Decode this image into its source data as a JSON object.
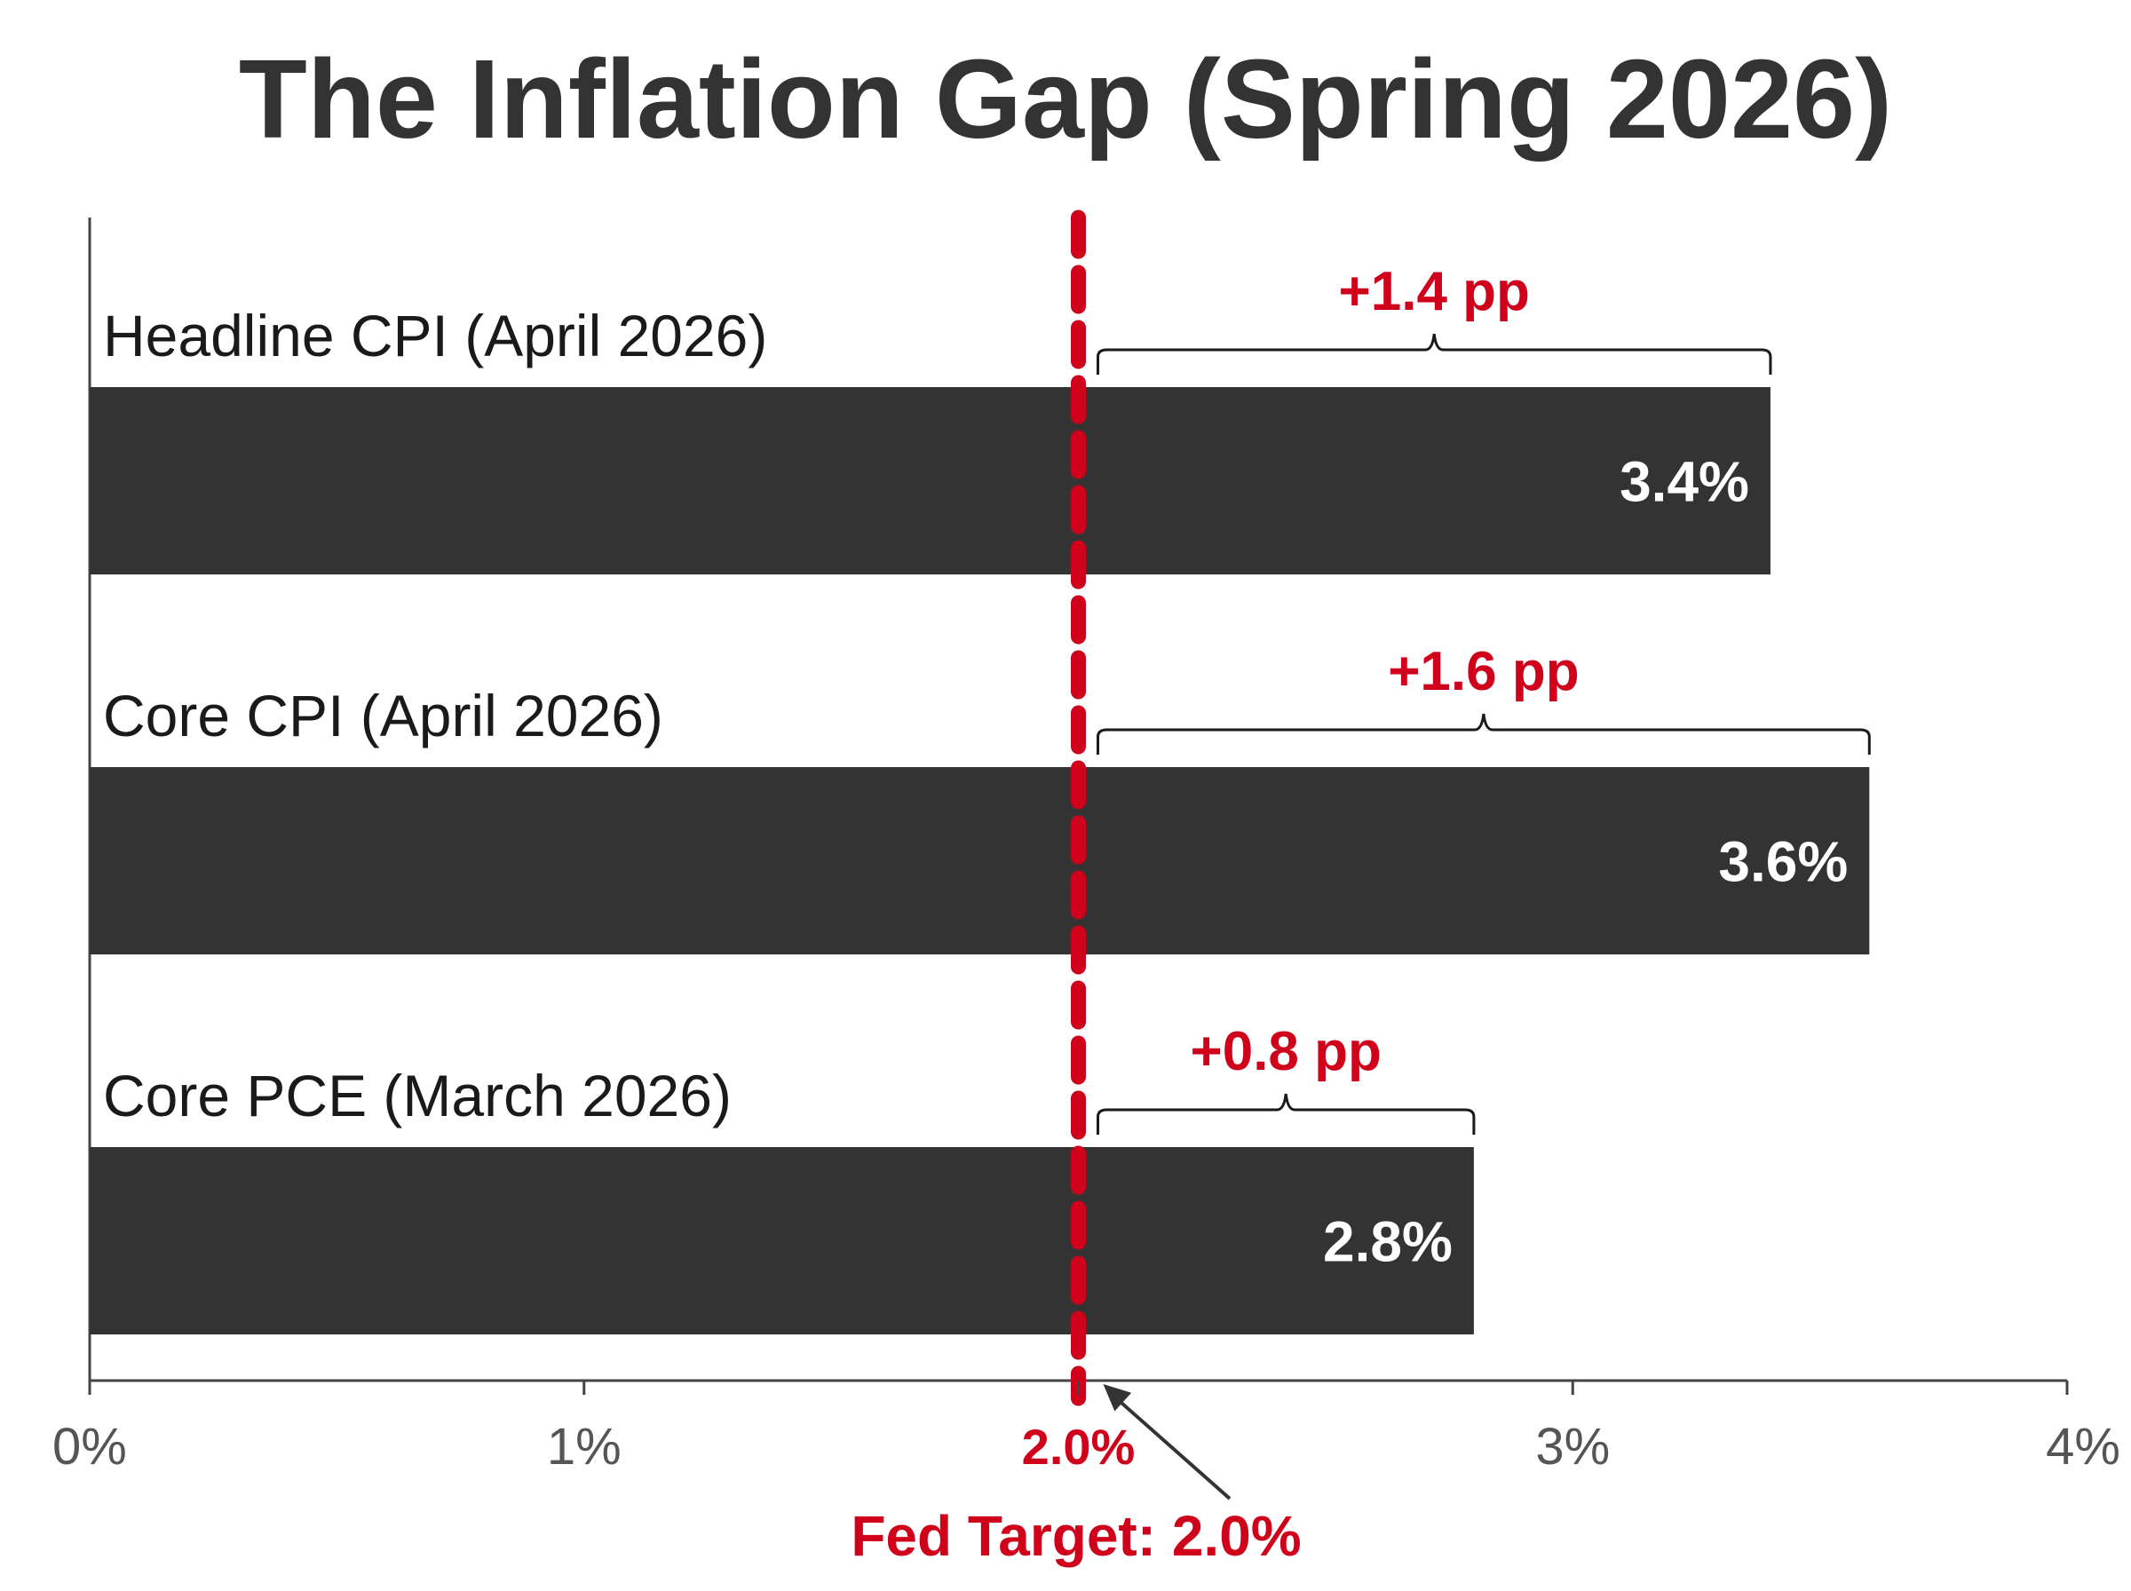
{
  "chart_data": {
    "type": "bar",
    "orientation": "horizontal",
    "title": "The Inflation Gap (Spring 2026)",
    "categories": [
      "Headline CPI (April 2026)",
      "Core CPI (April 2026)",
      "Core PCE (March 2026)"
    ],
    "values": [
      3.4,
      3.6,
      2.8
    ],
    "value_labels": [
      "3.4%",
      "3.6%",
      "2.8%"
    ],
    "gap_labels": [
      "+1.4 pp",
      "+1.6 pp",
      "+0.8 pp"
    ],
    "xlim": [
      0,
      4
    ],
    "xticks": [
      0,
      1,
      2,
      3,
      4
    ],
    "xtick_labels": [
      "0%",
      "1%",
      "2.0%",
      "3%",
      "4%"
    ],
    "xlabel": "",
    "ylabel": "",
    "grid": false,
    "legend": "none",
    "reference_line": {
      "value": 2.0,
      "style": "dashed",
      "annotation": "Fed Target: 2.0%"
    },
    "colors": {
      "bar": "#333333",
      "accent": "#d0021b",
      "axis": "#444444",
      "bar_text": "#ffffff"
    }
  }
}
